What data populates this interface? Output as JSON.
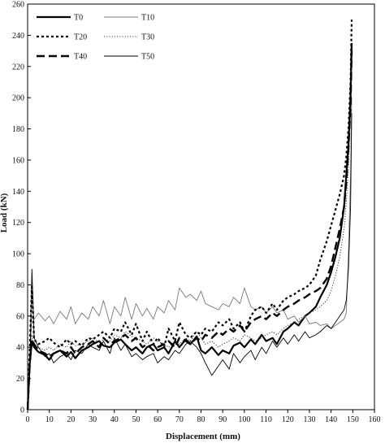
{
  "chart_data": {
    "type": "line",
    "title": "",
    "xlabel": "Displacement (mm)",
    "ylabel": "Load (kN)",
    "xlim": [
      0,
      160
    ],
    "ylim": [
      0,
      260
    ],
    "xticks": [
      0,
      10,
      20,
      30,
      40,
      50,
      60,
      70,
      80,
      90,
      100,
      110,
      120,
      130,
      140,
      150,
      160
    ],
    "yticks": [
      0,
      20,
      40,
      60,
      80,
      100,
      120,
      140,
      160,
      180,
      200,
      220,
      240,
      260
    ],
    "grid": false,
    "legend": "top-left",
    "series": [
      {
        "name": "T0",
        "color": "#000000",
        "style": "solid-thick",
        "x": [
          0,
          1,
          2,
          3,
          5,
          8,
          10,
          12,
          15,
          18,
          20,
          22,
          25,
          28,
          30,
          33,
          35,
          38,
          40,
          43,
          45,
          48,
          50,
          53,
          55,
          58,
          60,
          63,
          65,
          68,
          70,
          73,
          75,
          78,
          80,
          82,
          85,
          88,
          90,
          93,
          95,
          98,
          100,
          103,
          105,
          108,
          110,
          113,
          115,
          118,
          120,
          123,
          125,
          128,
          130,
          133,
          135,
          138,
          140,
          142,
          144,
          146,
          147,
          148,
          149,
          149.5
        ],
        "y": [
          0,
          30,
          44,
          40,
          37,
          35,
          32,
          36,
          38,
          34,
          37,
          33,
          38,
          40,
          42,
          44,
          41,
          40,
          43,
          45,
          42,
          38,
          40,
          36,
          40,
          42,
          38,
          40,
          36,
          44,
          40,
          45,
          42,
          47,
          38,
          36,
          40,
          35,
          38,
          36,
          41,
          43,
          40,
          45,
          42,
          48,
          44,
          46,
          42,
          50,
          52,
          56,
          54,
          60,
          62,
          66,
          72,
          80,
          88,
          98,
          110,
          130,
          150,
          170,
          200,
          235
        ]
      },
      {
        "name": "T10",
        "color": "#777777",
        "style": "solid-thin",
        "x": [
          0,
          1,
          2,
          3,
          5,
          8,
          10,
          12,
          15,
          18,
          20,
          22,
          25,
          28,
          30,
          33,
          35,
          38,
          40,
          43,
          45,
          48,
          50,
          53,
          55,
          58,
          60,
          63,
          65,
          68,
          70,
          73,
          75,
          78,
          80,
          82,
          85,
          88,
          90,
          93,
          95,
          98,
          100,
          103,
          105,
          108,
          110,
          113,
          115,
          118,
          120,
          123,
          125,
          128,
          130,
          133,
          135,
          138,
          140,
          142,
          144,
          146,
          147,
          148,
          149,
          149.5
        ],
        "y": [
          0,
          35,
          60,
          58,
          62,
          57,
          60,
          55,
          63,
          58,
          66,
          55,
          62,
          58,
          66,
          60,
          70,
          55,
          66,
          60,
          72,
          58,
          68,
          60,
          65,
          58,
          66,
          62,
          70,
          64,
          78,
          72,
          74,
          70,
          76,
          68,
          66,
          64,
          68,
          66,
          72,
          68,
          78,
          66,
          64,
          66,
          62,
          66,
          62,
          64,
          58,
          60,
          56,
          60,
          55,
          56,
          54,
          55,
          52,
          54,
          56,
          58,
          62,
          100,
          150,
          200
        ]
      },
      {
        "name": "T20",
        "color": "#000000",
        "style": "dotted-heavy",
        "x": [
          0,
          1,
          2,
          3,
          5,
          8,
          10,
          12,
          15,
          18,
          20,
          22,
          25,
          28,
          30,
          33,
          35,
          38,
          40,
          43,
          45,
          48,
          50,
          53,
          55,
          58,
          60,
          63,
          65,
          68,
          70,
          73,
          75,
          78,
          80,
          82,
          85,
          88,
          90,
          93,
          95,
          98,
          100,
          103,
          105,
          108,
          110,
          113,
          115,
          118,
          120,
          123,
          125,
          128,
          130,
          133,
          135,
          138,
          140,
          142,
          144,
          146,
          147,
          148,
          149,
          149.5
        ],
        "y": [
          0,
          40,
          80,
          45,
          42,
          44,
          46,
          43,
          40,
          45,
          42,
          44,
          41,
          46,
          45,
          48,
          50,
          46,
          52,
          50,
          56,
          48,
          55,
          44,
          50,
          42,
          46,
          40,
          52,
          44,
          56,
          48,
          46,
          50,
          48,
          52,
          50,
          56,
          54,
          58,
          52,
          56,
          50,
          60,
          64,
          66,
          62,
          68,
          64,
          70,
          72,
          74,
          76,
          78,
          80,
          86,
          96,
          108,
          118,
          128,
          138,
          150,
          162,
          180,
          210,
          250
        ]
      },
      {
        "name": "T30",
        "color": "#333333",
        "style": "dotted-fine",
        "x": [
          0,
          1,
          2,
          3,
          5,
          8,
          10,
          12,
          15,
          18,
          20,
          22,
          25,
          28,
          30,
          33,
          35,
          38,
          40,
          43,
          45,
          48,
          50,
          53,
          55,
          58,
          60,
          63,
          65,
          68,
          70,
          73,
          75,
          78,
          80,
          82,
          85,
          88,
          90,
          93,
          95,
          98,
          100,
          103,
          105,
          108,
          110,
          113,
          115,
          118,
          120,
          123,
          125,
          128,
          130,
          133,
          135,
          138,
          140,
          142,
          144,
          146,
          147,
          148,
          149,
          149.5
        ],
        "y": [
          0,
          32,
          48,
          42,
          40,
          38,
          40,
          38,
          42,
          40,
          44,
          41,
          42,
          44,
          46,
          43,
          45,
          44,
          48,
          46,
          50,
          47,
          46,
          44,
          42,
          46,
          44,
          42,
          40,
          44,
          42,
          46,
          44,
          50,
          46,
          42,
          44,
          40,
          42,
          44,
          46,
          44,
          48,
          46,
          44,
          46,
          48,
          50,
          48,
          52,
          54,
          56,
          58,
          60,
          62,
          64,
          66,
          70,
          76,
          86,
          98,
          116,
          132,
          156,
          190,
          225
        ]
      },
      {
        "name": "T40",
        "color": "#000000",
        "style": "long-dash",
        "x": [
          0,
          1,
          2,
          3,
          5,
          8,
          10,
          12,
          15,
          18,
          20,
          22,
          25,
          28,
          30,
          33,
          35,
          38,
          40,
          43,
          45,
          48,
          50,
          53,
          55,
          58,
          60,
          63,
          65,
          68,
          70,
          73,
          75,
          78,
          80,
          82,
          85,
          88,
          90,
          93,
          95,
          98,
          100,
          103,
          105,
          108,
          110,
          113,
          115,
          118,
          120,
          123,
          125,
          128,
          130,
          133,
          135,
          138,
          140,
          142,
          144,
          146,
          147,
          148,
          149,
          149.5
        ],
        "y": [
          0,
          30,
          45,
          42,
          38,
          36,
          34,
          36,
          38,
          36,
          40,
          36,
          40,
          42,
          44,
          40,
          46,
          42,
          44,
          46,
          48,
          44,
          46,
          40,
          42,
          38,
          40,
          42,
          44,
          40,
          46,
          44,
          42,
          46,
          44,
          48,
          46,
          50,
          48,
          52,
          50,
          54,
          50,
          56,
          58,
          60,
          58,
          62,
          60,
          64,
          66,
          68,
          70,
          72,
          74,
          76,
          78,
          84,
          92,
          104,
          116,
          130,
          146,
          168,
          196,
          230
        ]
      },
      {
        "name": "T50",
        "color": "#000000",
        "style": "solid-fine",
        "x": [
          0,
          1,
          2,
          3,
          5,
          8,
          10,
          12,
          15,
          18,
          20,
          22,
          25,
          28,
          30,
          33,
          35,
          38,
          40,
          43,
          45,
          48,
          50,
          53,
          55,
          58,
          60,
          63,
          65,
          68,
          70,
          73,
          75,
          78,
          80,
          82,
          85,
          88,
          90,
          93,
          95,
          98,
          100,
          103,
          105,
          108,
          110,
          113,
          115,
          118,
          120,
          123,
          125,
          128,
          130,
          133,
          135,
          138,
          140,
          142,
          144,
          146,
          147,
          148,
          149,
          149.5
        ],
        "y": [
          0,
          28,
          90,
          46,
          40,
          34,
          36,
          30,
          34,
          36,
          32,
          38,
          36,
          42,
          40,
          38,
          44,
          36,
          46,
          38,
          42,
          34,
          36,
          32,
          34,
          36,
          30,
          34,
          32,
          38,
          36,
          42,
          44,
          40,
          36,
          30,
          22,
          28,
          32,
          26,
          36,
          30,
          34,
          38,
          32,
          40,
          36,
          44,
          40,
          46,
          42,
          48,
          44,
          50,
          46,
          48,
          50,
          54,
          52,
          56,
          60,
          64,
          70,
          90,
          130,
          190
        ]
      }
    ]
  }
}
